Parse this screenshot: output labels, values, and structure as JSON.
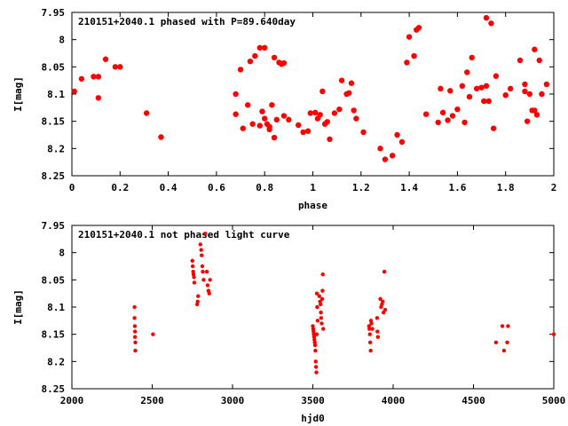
{
  "chart_data": [
    {
      "type": "scatter",
      "title": "210151+2040.1 phased with P=89.640day",
      "xlabel": "phase",
      "ylabel": "I[mag]",
      "xlim": [
        0,
        2
      ],
      "ylim": [
        7.95,
        8.25
      ],
      "y_inverted": true,
      "x_ticks": [
        "0",
        "0.2",
        "0.4",
        "0.6",
        "0.8",
        "1",
        "1.2",
        "1.4",
        "1.6",
        "1.8",
        "2"
      ],
      "y_ticks": [
        "7.95",
        "8",
        "8.05",
        "8.1",
        "8.15",
        "8.2",
        "8.25"
      ],
      "marker": "filled-circle",
      "color": "#ff0000",
      "points": [
        [
          0.01,
          8.095
        ],
        [
          0.04,
          8.072
        ],
        [
          0.09,
          8.068
        ],
        [
          0.11,
          8.068
        ],
        [
          0.11,
          8.107
        ],
        [
          0.14,
          8.036
        ],
        [
          0.18,
          8.05
        ],
        [
          0.2,
          8.05
        ],
        [
          0.31,
          8.135
        ],
        [
          0.37,
          8.179
        ],
        [
          0.68,
          8.1
        ],
        [
          0.68,
          8.137
        ],
        [
          0.7,
          8.055
        ],
        [
          0.71,
          8.163
        ],
        [
          0.73,
          8.12
        ],
        [
          0.74,
          8.04
        ],
        [
          0.75,
          8.155
        ],
        [
          0.76,
          8.03
        ],
        [
          0.78,
          8.015
        ],
        [
          0.78,
          8.158
        ],
        [
          0.79,
          8.132
        ],
        [
          0.8,
          8.015
        ],
        [
          0.8,
          8.145
        ],
        [
          0.81,
          8.155
        ],
        [
          0.82,
          8.16
        ],
        [
          0.82,
          8.165
        ],
        [
          0.83,
          8.12
        ],
        [
          0.84,
          8.033
        ],
        [
          0.84,
          8.18
        ],
        [
          0.85,
          8.147
        ],
        [
          0.86,
          8.042
        ],
        [
          0.87,
          8.045
        ],
        [
          0.88,
          8.14
        ],
        [
          0.88,
          8.043
        ],
        [
          0.9,
          8.147
        ],
        [
          0.94,
          8.157
        ],
        [
          0.96,
          8.17
        ],
        [
          0.98,
          8.168
        ],
        [
          0.99,
          8.135
        ],
        [
          1.01,
          8.134
        ],
        [
          1.02,
          8.145
        ],
        [
          1.03,
          8.138
        ],
        [
          1.04,
          8.095
        ],
        [
          1.05,
          8.155
        ],
        [
          1.06,
          8.151
        ],
        [
          1.07,
          8.183
        ],
        [
          1.09,
          8.135
        ],
        [
          1.11,
          8.128
        ],
        [
          1.12,
          8.075
        ],
        [
          1.14,
          8.1
        ],
        [
          1.15,
          8.098
        ],
        [
          1.16,
          8.08
        ],
        [
          1.17,
          8.13
        ],
        [
          1.18,
          8.145
        ],
        [
          1.21,
          8.17
        ],
        [
          1.28,
          8.2
        ],
        [
          1.3,
          8.22
        ],
        [
          1.33,
          8.213
        ],
        [
          1.35,
          8.175
        ],
        [
          1.37,
          8.188
        ],
        [
          1.39,
          8.042
        ],
        [
          1.4,
          7.995
        ],
        [
          1.42,
          8.03
        ],
        [
          1.43,
          7.982
        ],
        [
          1.44,
          7.978
        ],
        [
          1.47,
          8.137
        ],
        [
          1.52,
          8.152
        ],
        [
          1.53,
          8.09
        ],
        [
          1.54,
          8.134
        ],
        [
          1.56,
          8.148
        ],
        [
          1.57,
          8.094
        ],
        [
          1.58,
          8.14
        ],
        [
          1.6,
          8.128
        ],
        [
          1.62,
          8.085
        ],
        [
          1.63,
          8.152
        ],
        [
          1.64,
          8.06
        ],
        [
          1.65,
          8.105
        ],
        [
          1.66,
          8.033
        ],
        [
          1.68,
          8.09
        ],
        [
          1.7,
          8.088
        ],
        [
          1.71,
          8.113
        ],
        [
          1.72,
          7.96
        ],
        [
          1.72,
          8.085
        ],
        [
          1.73,
          8.113
        ],
        [
          1.74,
          7.97
        ],
        [
          1.75,
          8.163
        ],
        [
          1.76,
          8.067
        ],
        [
          1.8,
          8.102
        ],
        [
          1.82,
          8.09
        ],
        [
          1.86,
          8.038
        ],
        [
          1.88,
          8.095
        ],
        [
          1.88,
          8.082
        ],
        [
          1.89,
          8.15
        ],
        [
          1.9,
          8.1
        ],
        [
          1.91,
          8.13
        ],
        [
          1.92,
          8.018
        ],
        [
          1.92,
          8.13
        ],
        [
          1.93,
          8.138
        ],
        [
          1.94,
          8.038
        ],
        [
          1.95,
          8.1
        ],
        [
          1.97,
          8.082
        ]
      ]
    },
    {
      "type": "scatter",
      "title": "210151+2040.1 not phased light curve",
      "xlabel": "hjd0",
      "ylabel": "I[mag]",
      "xlim": [
        2000,
        5000
      ],
      "ylim": [
        7.95,
        8.25
      ],
      "y_inverted": true,
      "x_ticks": [
        "2000",
        "2500",
        "3000",
        "3500",
        "4000",
        "4500",
        "5000"
      ],
      "y_ticks": [
        "7.95",
        "8",
        "8.05",
        "8.1",
        "8.15",
        "8.2",
        "8.25"
      ],
      "marker": "filled-circle",
      "color": "#ff0000",
      "points": [
        [
          2390,
          8.1
        ],
        [
          2390,
          8.12
        ],
        [
          2392,
          8.135
        ],
        [
          2393,
          8.145
        ],
        [
          2393,
          8.155
        ],
        [
          2395,
          8.165
        ],
        [
          2395,
          8.18
        ],
        [
          2505,
          8.15
        ],
        [
          2750,
          8.015
        ],
        [
          2752,
          8.025
        ],
        [
          2755,
          8.035
        ],
        [
          2757,
          8.04
        ],
        [
          2760,
          8.045
        ],
        [
          2762,
          8.055
        ],
        [
          2780,
          8.095
        ],
        [
          2783,
          8.09
        ],
        [
          2786,
          8.08
        ],
        [
          2800,
          7.985
        ],
        [
          2805,
          7.995
        ],
        [
          2808,
          8.005
        ],
        [
          2812,
          8.025
        ],
        [
          2815,
          8.035
        ],
        [
          2820,
          8.05
        ],
        [
          2830,
          7.965
        ],
        [
          2840,
          8.035
        ],
        [
          2845,
          8.06
        ],
        [
          2850,
          8.07
        ],
        [
          2855,
          8.075
        ],
        [
          2860,
          8.05
        ],
        [
          3500,
          8.135
        ],
        [
          3502,
          8.14
        ],
        [
          3504,
          8.145
        ],
        [
          3506,
          8.15
        ],
        [
          3508,
          8.155
        ],
        [
          3510,
          8.16
        ],
        [
          3512,
          8.165
        ],
        [
          3514,
          8.17
        ],
        [
          3516,
          8.18
        ],
        [
          3518,
          8.2
        ],
        [
          3520,
          8.21
        ],
        [
          3522,
          8.22
        ],
        [
          3524,
          8.15
        ],
        [
          3525,
          8.075
        ],
        [
          3527,
          8.1
        ],
        [
          3530,
          8.125
        ],
        [
          3540,
          8.08
        ],
        [
          3545,
          8.09
        ],
        [
          3548,
          8.095
        ],
        [
          3550,
          8.11
        ],
        [
          3552,
          8.12
        ],
        [
          3555,
          8.13
        ],
        [
          3558,
          8.085
        ],
        [
          3560,
          8.07
        ],
        [
          3562,
          8.04
        ],
        [
          3565,
          8.14
        ],
        [
          3850,
          8.135
        ],
        [
          3852,
          8.14
        ],
        [
          3855,
          8.15
        ],
        [
          3857,
          8.165
        ],
        [
          3860,
          8.18
        ],
        [
          3862,
          8.125
        ],
        [
          3865,
          8.13
        ],
        [
          3870,
          8.14
        ],
        [
          3900,
          8.12
        ],
        [
          3902,
          8.145
        ],
        [
          3905,
          8.155
        ],
        [
          3920,
          8.085
        ],
        [
          3925,
          8.1
        ],
        [
          3930,
          8.095
        ],
        [
          3935,
          8.09
        ],
        [
          3940,
          8.11
        ],
        [
          3945,
          8.035
        ],
        [
          3950,
          8.105
        ],
        [
          4640,
          8.165
        ],
        [
          4680,
          8.135
        ],
        [
          4690,
          8.18
        ],
        [
          4710,
          8.165
        ],
        [
          4715,
          8.135
        ],
        [
          5000,
          8.15
        ]
      ]
    }
  ]
}
